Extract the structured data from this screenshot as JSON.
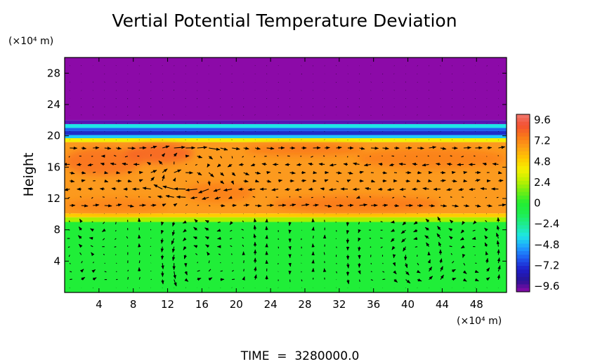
{
  "chart_data": {
    "type": "heatmap",
    "title": "Vertial Potential Temperature Deviation",
    "ylabel": "Height",
    "y_unit_label": "(×10⁴ m)",
    "x_unit_label": "(×10⁴ m)",
    "footer": "TIME  =  3280000.0",
    "xlim": [
      0,
      51.5
    ],
    "ylim": [
      0,
      30
    ],
    "x_ticks": [
      "4",
      "8",
      "12",
      "16",
      "20",
      "24",
      "28",
      "32",
      "36",
      "40",
      "44",
      "48"
    ],
    "y_ticks": [
      "4",
      "8",
      "12",
      "16",
      "20",
      "24",
      "28"
    ],
    "colorbar": {
      "labels": [
        "9.6",
        "7.2",
        "4.8",
        "2.4",
        "0",
        "−2.4",
        "−4.8",
        "−7.2",
        "−9.6"
      ],
      "range": [
        -9.6,
        9.6
      ]
    },
    "layers": [
      {
        "y_from": 0,
        "y_to": 9,
        "value": 0.9,
        "color": "#20ee38"
      },
      {
        "y_from": 9,
        "y_to": 9.6,
        "value": 2.2,
        "color": "#a8f000"
      },
      {
        "y_from": 9.6,
        "y_to": 10.1,
        "value": 4.4,
        "color": "#ffcc00"
      },
      {
        "y_from": 10.1,
        "y_to": 19.2,
        "value": 6.2,
        "color": "#fc9a1e"
      },
      {
        "y_from": 19.2,
        "y_to": 19.7,
        "value": 3.4,
        "color": "#f2f000"
      },
      {
        "y_from": 19.7,
        "y_to": 20.1,
        "value": -4,
        "color": "#1ec8ff"
      },
      {
        "y_from": 20.1,
        "y_to": 20.6,
        "value": -7,
        "color": "#202cc8"
      },
      {
        "y_from": 20.6,
        "y_to": 21,
        "value": -5.5,
        "color": "#1e60f0"
      },
      {
        "y_from": 21,
        "y_to": 21.5,
        "value": -3,
        "color": "#1ee6e6"
      },
      {
        "y_from": 21.5,
        "y_to": 22,
        "value": -8.5,
        "color": "#5a14b4"
      },
      {
        "y_from": 22,
        "y_to": 30,
        "value": -9.6,
        "color": "#8c0aa8"
      }
    ],
    "warm_patches": [
      {
        "x": [
          0,
          9
        ],
        "y": [
          15,
          18.5
        ],
        "value": 7.4
      },
      {
        "x": [
          7,
          15
        ],
        "y": [
          16.5,
          19
        ],
        "value": 7.8
      },
      {
        "x": [
          21,
          35
        ],
        "y": [
          17.5,
          19
        ],
        "value": 7.2
      },
      {
        "x": [
          24,
          44
        ],
        "y": [
          10.3,
          12.3
        ],
        "value": 7.2
      },
      {
        "x": [
          34,
          51.5
        ],
        "y": [
          15.8,
          18.4
        ],
        "value": 7.0
      },
      {
        "x": [
          14,
          22
        ],
        "y": [
          11.5,
          14
        ],
        "value": 7.0
      },
      {
        "x": [
          0,
          12
        ],
        "y": [
          10.3,
          12
        ],
        "value": 6.9
      }
    ],
    "vector_field": {
      "field_rows": [
        0,
        1,
        2
      ],
      "cool_layer": [
        1,
        9
      ],
      "warm_layer": [
        10.5,
        19
      ],
      "cool_circulations": [
        {
          "x": 2.5,
          "y": 4,
          "r": 2.6
        },
        {
          "x": 16.5,
          "y": 4,
          "r": 3.2
        },
        {
          "x": 40.5,
          "y": 4.5,
          "r": 3.3
        },
        {
          "x": 47.5,
          "y": 4.5,
          "r": 2.4
        }
      ],
      "warm_circulations": [
        {
          "x": 15.5,
          "y": 15,
          "r": 2.5
        },
        {
          "x": 13,
          "y": 14.5,
          "r": 1.8
        }
      ]
    }
  }
}
